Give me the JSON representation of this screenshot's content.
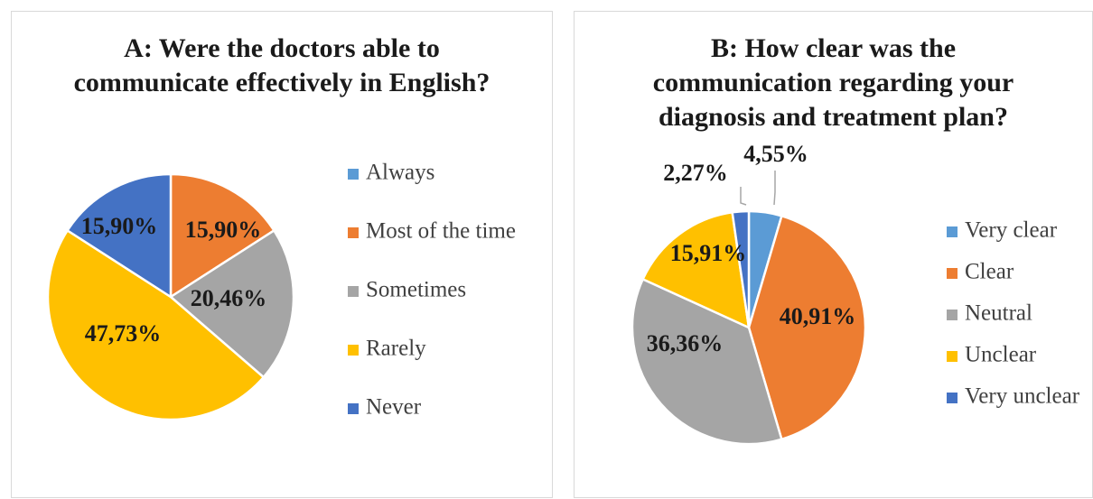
{
  "chart_data": [
    {
      "type": "pie",
      "title": "A: Were the doctors able to communicate effectively in English?",
      "title_lines": [
        "A: Were the doctors able to",
        "communicate effectively in English?"
      ],
      "legend_position": "right",
      "slices": [
        {
          "label": "Always",
          "value": 0,
          "color": "#5b9bd5",
          "data_label": ""
        },
        {
          "label": "Most of the time",
          "value": 15.9,
          "color": "#ed7d31",
          "data_label": "15,90%"
        },
        {
          "label": "Sometimes",
          "value": 20.46,
          "color": "#a5a5a5",
          "data_label": "20,46%"
        },
        {
          "label": "Rarely",
          "value": 47.73,
          "color": "#ffc000",
          "data_label": "47,73%"
        },
        {
          "label": "Never",
          "value": 15.9,
          "color": "#4472c4",
          "data_label": "15,90%"
        }
      ]
    },
    {
      "type": "pie",
      "title": "B: How clear was the communication regarding your diagnosis and treatment plan?",
      "title_lines": [
        "B: How clear was the",
        "communication regarding your",
        "diagnosis and treatment plan?"
      ],
      "legend_position": "right",
      "slices": [
        {
          "label": "Very clear",
          "value": 4.55,
          "color": "#5b9bd5",
          "data_label": "4,55%"
        },
        {
          "label": "Clear",
          "value": 40.91,
          "color": "#ed7d31",
          "data_label": "40,91%"
        },
        {
          "label": "Neutral",
          "value": 36.36,
          "color": "#a5a5a5",
          "data_label": "36,36%"
        },
        {
          "label": "Unclear",
          "value": 15.91,
          "color": "#ffc000",
          "data_label": "15,91%"
        },
        {
          "label": "Very unclear",
          "value": 2.27,
          "color": "#4472c4",
          "data_label": "2,27%"
        }
      ]
    }
  ]
}
